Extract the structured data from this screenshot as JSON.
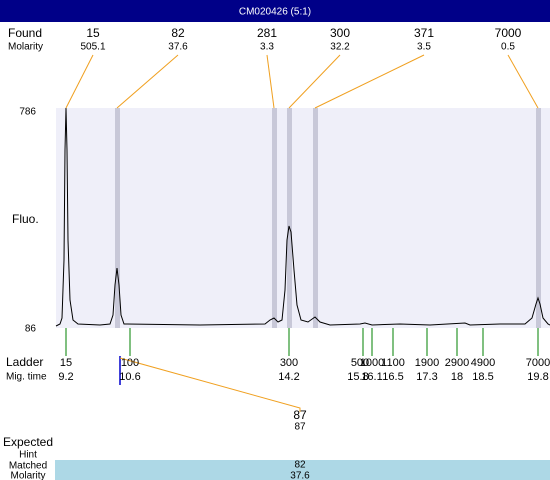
{
  "header": {
    "title": "CM020426 (5:1)"
  },
  "found": {
    "label": "Found",
    "molarity_label": "Molarity",
    "peaks": [
      {
        "size": 15,
        "molarity": 505.1
      },
      {
        "size": 82,
        "molarity": 37.6
      },
      {
        "size": 281,
        "molarity": 3.3
      },
      {
        "size": 300,
        "molarity": 32.2
      },
      {
        "size": 371,
        "molarity": 3.5
      },
      {
        "size": 7000,
        "molarity": 0.5
      }
    ]
  },
  "axis": {
    "y_label": "Fluo.",
    "top": 786,
    "bottom": 86
  },
  "ladder": {
    "label": "Ladder",
    "time_label": "Mig. time",
    "bands": [
      {
        "size": 15,
        "time": 9.2
      },
      {
        "size": 100,
        "time": 10.6
      },
      {
        "size": 300,
        "time": 14.2
      },
      {
        "size": 500,
        "time": 15.8
      },
      {
        "size": 1000,
        "time": 16.1
      },
      {
        "size": 1100,
        "time": 16.5
      },
      {
        "size": 1900,
        "time": 17.3
      },
      {
        "size": 2900,
        "time": 18
      },
      {
        "size": 4900,
        "time": 18.5
      },
      {
        "size": 7000,
        "time": 19.8
      }
    ]
  },
  "selection": {
    "expected_label": "Expected",
    "expected": 87,
    "hint_label": "Hint",
    "hint": 87,
    "matched_label": "Matched",
    "matched": 82,
    "molarity_label": "Molarity",
    "molarity": 37.6
  }
}
